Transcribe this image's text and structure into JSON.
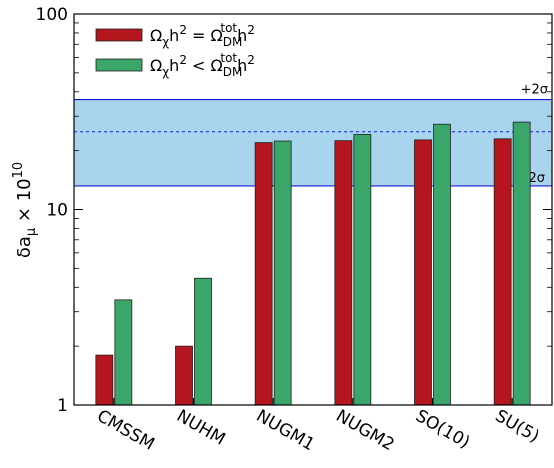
{
  "chart_data": {
    "type": "bar",
    "categories": [
      "CMSSM",
      "NUHM",
      "NUGM1",
      "NUGM2",
      "SO(10)",
      "SU(5)"
    ],
    "series": [
      {
        "name_parts": [
          "Ω",
          "χ",
          "h",
          "2",
          " = Ω",
          "DM",
          "tot",
          "h",
          "2"
        ],
        "color": "#b5151d",
        "values": [
          1.8,
          2.0,
          22.0,
          22.5,
          22.7,
          23.0
        ]
      },
      {
        "name_parts": [
          "Ω",
          "χ",
          "h",
          "2",
          " < Ω",
          "DM",
          "tot",
          "h",
          "2"
        ],
        "color": "#3aa66a",
        "values": [
          3.45,
          4.45,
          22.4,
          24.2,
          27.3,
          28.0
        ]
      }
    ],
    "ylabel_parts": [
      "δa",
      "μ",
      " × 10",
      "10"
    ],
    "yscale": "log",
    "ylim": [
      1,
      100
    ],
    "y_ticks": [
      {
        "value": 1,
        "label": "1"
      },
      {
        "value": 10,
        "label": "10"
      },
      {
        "value": 100,
        "label": "100"
      }
    ],
    "band": {
      "low": 13.2,
      "high": 36.5,
      "central": 25.0,
      "color": "#a8d4ee",
      "line_color": "#1a1ad6"
    },
    "band_labels": {
      "upper": "+2σ",
      "lower": "-2σ"
    },
    "legend_position": "top-left",
    "grid": false
  }
}
